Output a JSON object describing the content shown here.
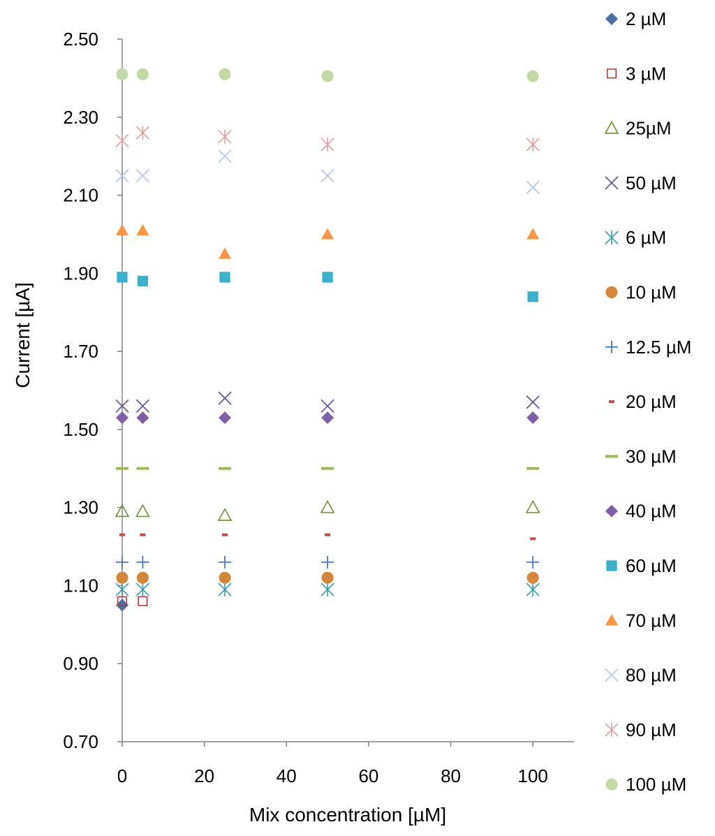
{
  "chart_data": {
    "type": "scatter",
    "xlabel": "Mix concentration [µM]",
    "ylabel": "Current [µA]",
    "xlim": [
      0,
      110
    ],
    "ylim": [
      0.7,
      2.5
    ],
    "xticks": [
      0,
      20,
      40,
      60,
      80,
      100
    ],
    "xtick_labels": [
      "0",
      "20",
      "40",
      "60",
      "80",
      "100"
    ],
    "yticks": [
      0.7,
      0.9,
      1.1,
      1.3,
      1.5,
      1.7,
      1.9,
      2.1,
      2.3,
      2.5
    ],
    "ytick_labels": [
      "0.70",
      "0.90",
      "1.10",
      "1.30",
      "1.50",
      "1.70",
      "1.90",
      "2.10",
      "2.30",
      "2.50"
    ],
    "grid": false,
    "legend_position": "right",
    "series": [
      {
        "name": "2 µM",
        "marker": "diamond-filled",
        "color": "#4a6fa5",
        "points": [
          [
            0,
            1.05
          ]
        ]
      },
      {
        "name": "3 µM",
        "marker": "square-open",
        "color": "#b03a3a",
        "points": [
          [
            0,
            1.06
          ],
          [
            5,
            1.06
          ]
        ]
      },
      {
        "name": "25µM",
        "marker": "triangle-open",
        "color": "#6e8f3a",
        "points": [
          [
            0,
            1.29
          ],
          [
            5,
            1.29
          ],
          [
            25,
            1.28
          ],
          [
            50,
            1.3
          ],
          [
            100,
            1.3
          ]
        ]
      },
      {
        "name": "50 µM",
        "marker": "x",
        "color": "#6b5b95",
        "points": [
          [
            0,
            1.56
          ],
          [
            5,
            1.56
          ],
          [
            25,
            1.58
          ],
          [
            50,
            1.56
          ],
          [
            100,
            1.57
          ]
        ]
      },
      {
        "name": "6 µM",
        "marker": "asterisk",
        "color": "#3a9aaa",
        "points": [
          [
            0,
            1.09
          ],
          [
            5,
            1.09
          ],
          [
            25,
            1.09
          ],
          [
            50,
            1.09
          ],
          [
            100,
            1.09
          ]
        ]
      },
      {
        "name": "10 µM",
        "marker": "circle-filled",
        "color": "#d2873a",
        "points": [
          [
            0,
            1.12
          ],
          [
            5,
            1.12
          ],
          [
            25,
            1.12
          ],
          [
            50,
            1.12
          ],
          [
            100,
            1.12
          ]
        ]
      },
      {
        "name": "12.5 µM",
        "marker": "plus",
        "color": "#4a78b8",
        "points": [
          [
            0,
            1.16
          ],
          [
            5,
            1.16
          ],
          [
            25,
            1.16
          ],
          [
            50,
            1.16
          ],
          [
            100,
            1.16
          ]
        ]
      },
      {
        "name": "20 µM",
        "marker": "short-dash",
        "color": "#c0504d",
        "points": [
          [
            0,
            1.23
          ],
          [
            5,
            1.23
          ],
          [
            25,
            1.23
          ],
          [
            50,
            1.23
          ],
          [
            100,
            1.22
          ]
        ]
      },
      {
        "name": "30 µM",
        "marker": "long-dash",
        "color": "#9bbb59",
        "points": [
          [
            0,
            1.4
          ],
          [
            5,
            1.4
          ],
          [
            25,
            1.4
          ],
          [
            50,
            1.4
          ],
          [
            100,
            1.4
          ]
        ]
      },
      {
        "name": "40 µM",
        "marker": "diamond-filled",
        "color": "#7e5fa8",
        "points": [
          [
            0,
            1.53
          ],
          [
            5,
            1.53
          ],
          [
            25,
            1.53
          ],
          [
            50,
            1.53
          ],
          [
            100,
            1.53
          ]
        ]
      },
      {
        "name": "60 µM",
        "marker": "square-filled",
        "color": "#3bb0cc",
        "points": [
          [
            0,
            1.89
          ],
          [
            5,
            1.88
          ],
          [
            25,
            1.89
          ],
          [
            50,
            1.89
          ],
          [
            100,
            1.84
          ]
        ]
      },
      {
        "name": "70 µM",
        "marker": "triangle-filled",
        "color": "#f79646",
        "points": [
          [
            0,
            2.01
          ],
          [
            5,
            2.01
          ],
          [
            25,
            1.95
          ],
          [
            50,
            2.0
          ],
          [
            100,
            2.0
          ]
        ]
      },
      {
        "name": "80 µM",
        "marker": "x",
        "color": "#b8c8e8",
        "points": [
          [
            0,
            2.15
          ],
          [
            5,
            2.15
          ],
          [
            25,
            2.2
          ],
          [
            50,
            2.15
          ],
          [
            100,
            2.12
          ]
        ]
      },
      {
        "name": "90 µM",
        "marker": "asterisk",
        "color": "#e0a0a0",
        "points": [
          [
            0,
            2.24
          ],
          [
            5,
            2.26
          ],
          [
            25,
            2.25
          ],
          [
            50,
            2.23
          ],
          [
            100,
            2.23
          ]
        ]
      },
      {
        "name": "100 µM",
        "marker": "circle-filled",
        "color": "#c4d9a8",
        "points": [
          [
            0,
            2.41
          ],
          [
            5,
            2.41
          ],
          [
            25,
            2.41
          ],
          [
            50,
            2.405
          ],
          [
            100,
            2.405
          ]
        ]
      }
    ]
  }
}
